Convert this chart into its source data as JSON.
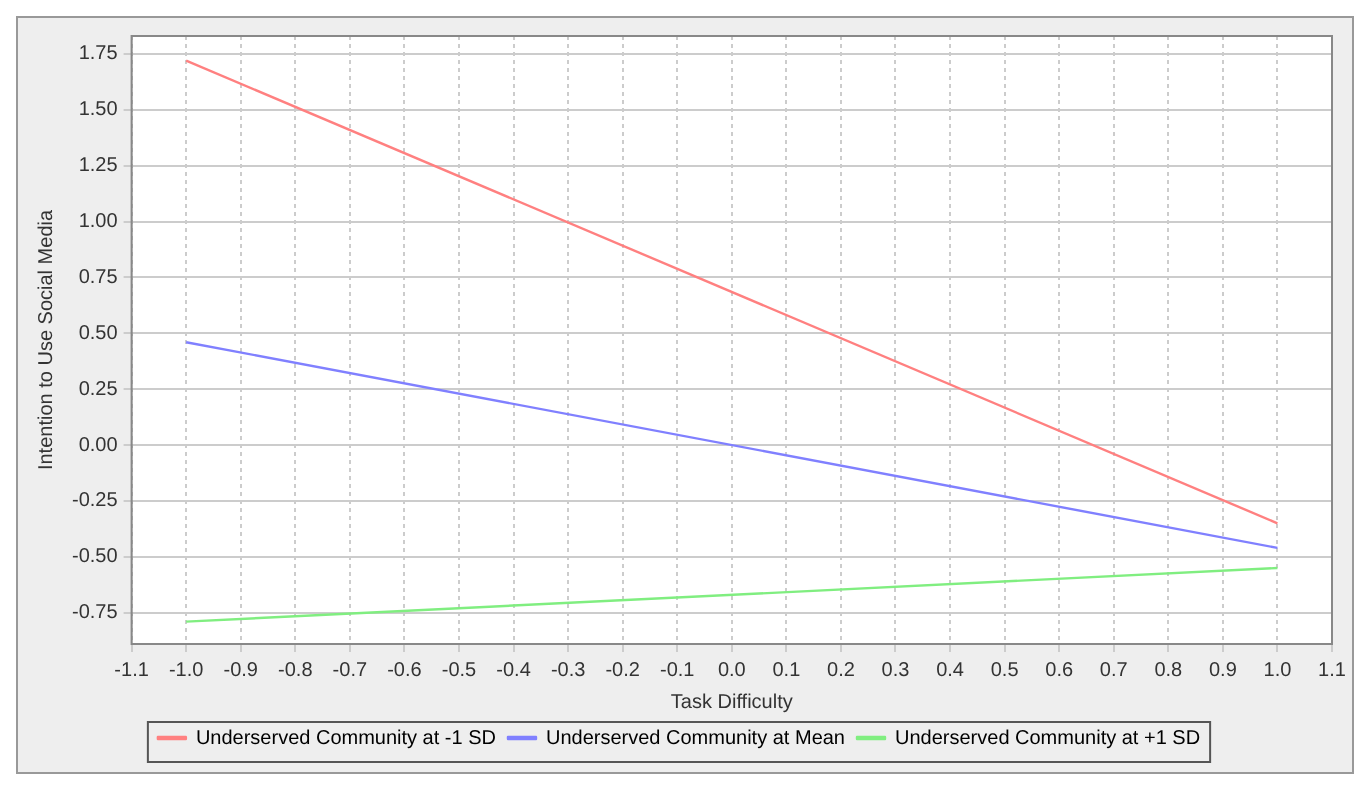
{
  "chart_data": {
    "type": "line",
    "xlabel": "Task Difficulty",
    "ylabel": "Intention to Use Social Media",
    "x": [
      -1.0,
      1.0
    ],
    "series": [
      {
        "name": "Underserved Community at -1 SD",
        "color": "#ff8080",
        "values": [
          1.72,
          -0.35
        ]
      },
      {
        "name": "Underserved Community at Mean",
        "color": "#8080ff",
        "values": [
          0.46,
          -0.46
        ]
      },
      {
        "name": "Underserved Community at +1 SD",
        "color": "#80ee80",
        "values": [
          -0.79,
          -0.55
        ]
      }
    ],
    "xlim": [
      -1.1,
      1.1
    ],
    "xticks": [
      -1.1,
      {
        "value": -1,
        "label": "-1.0"
      },
      -0.9,
      -0.8,
      -0.7,
      -0.6,
      -0.5,
      -0.4,
      -0.3,
      -0.2,
      -0.1,
      {
        "value": 0,
        "label": "0.0"
      },
      0.1,
      0.2,
      0.3,
      0.4,
      0.5,
      0.6,
      0.7,
      0.8,
      0.9,
      {
        "value": 1,
        "label": "1.0"
      },
      1.1
    ],
    "ylim": [
      -0.89,
      1.83
    ],
    "yticks": [
      -0.75,
      {
        "value": -0.5,
        "label": "-0.50"
      },
      -0.25,
      {
        "value": 0,
        "label": "0.00"
      },
      0.25,
      {
        "value": 0.5,
        "label": "0.50"
      },
      0.75,
      {
        "value": 1,
        "label": "1.00"
      },
      1.25,
      {
        "value": 1.5,
        "label": "1.50"
      },
      1.75
    ],
    "grid": true,
    "legend": "bottom",
    "marker": "none",
    "line_style": "solid"
  }
}
